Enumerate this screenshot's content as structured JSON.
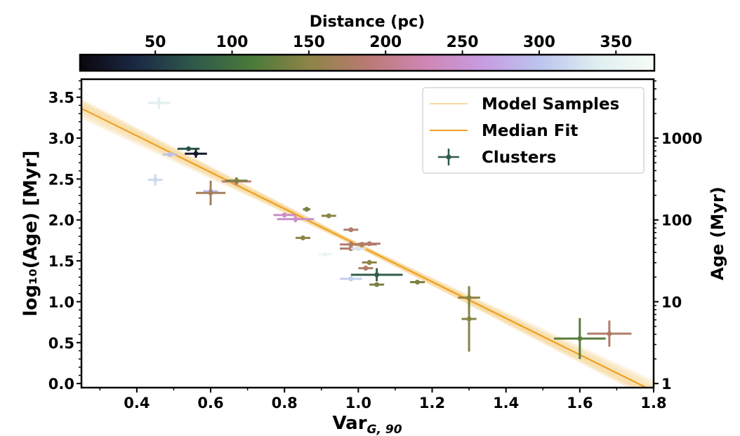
{
  "chart_data": {
    "type": "scatter",
    "colorbar": {
      "title": "Distance (pc)",
      "range": [
        1,
        375
      ],
      "ticks": [
        50,
        100,
        150,
        200,
        250,
        300,
        350
      ],
      "stops": [
        "#0b0610",
        "#1b2a45",
        "#2f5a4a",
        "#4a7a3a",
        "#8f8447",
        "#b97a72",
        "#cf86b4",
        "#c79be0",
        "#bcc4ee",
        "#dfeef0",
        "#f7fcf6"
      ]
    },
    "xlabel": "Var",
    "xlabel_sub": "G, 90",
    "ylabel": "log₁₀(Age) [Myr]",
    "y2label": "Age (Myr)",
    "xlim": [
      0.25,
      1.8
    ],
    "ylim": [
      -0.05,
      3.72
    ],
    "xticks": [
      "0.4",
      "0.6",
      "0.8",
      "1.0",
      "1.2",
      "1.4",
      "1.6",
      "1.8"
    ],
    "yticks": [
      "0.0",
      "0.5",
      "1.0",
      "1.5",
      "2.0",
      "2.5",
      "3.0",
      "3.5"
    ],
    "y2ticks": [
      "1",
      "10",
      "100",
      "1000"
    ],
    "legend": {
      "position": "top-right",
      "entries": [
        {
          "label": "Model Samples",
          "color": "#f5d9a0"
        },
        {
          "label": "Median Fit",
          "color": "#f0a020"
        },
        {
          "label": "Clusters",
          "color": "#2f5a4a"
        }
      ]
    },
    "median_fit": {
      "slope": -2.23,
      "intercept": 3.92
    },
    "model_sample_slopes": [
      -2.35,
      -2.3,
      -2.26,
      -2.2,
      -2.15,
      -2.1,
      -2.28,
      -2.18,
      -2.24,
      -2.32
    ],
    "clusters": [
      {
        "x": 0.46,
        "y": 3.43,
        "xerr": 0.03,
        "yerr": 0.07,
        "dist": 340
      },
      {
        "x": 0.45,
        "y": 2.49,
        "xerr": 0.02,
        "yerr": 0.07,
        "dist": 320
      },
      {
        "x": 0.54,
        "y": 2.87,
        "xerr": 0.03,
        "yerr": 0.02,
        "dist": 70
      },
      {
        "x": 0.56,
        "y": 2.81,
        "xerr": 0.03,
        "yerr": 0.05,
        "dist": 20
      },
      {
        "x": 0.49,
        "y": 2.8,
        "xerr": 0.02,
        "yerr": 0.03,
        "dist": 300
      },
      {
        "x": 0.6,
        "y": 2.35,
        "xerr": 0.02,
        "yerr": 0.05,
        "dist": 290
      },
      {
        "x": 0.6,
        "y": 2.33,
        "xerr": 0.04,
        "yerr": 0.15,
        "dist": 170
      },
      {
        "x": 0.67,
        "y": 2.47,
        "xerr": 0.04,
        "yerr": 0.05,
        "dist": 200
      },
      {
        "x": 0.67,
        "y": 2.48,
        "xerr": 0.03,
        "yerr": 0.04,
        "dist": 140
      },
      {
        "x": 0.8,
        "y": 2.06,
        "xerr": 0.03,
        "yerr": 0.03,
        "dist": 240
      },
      {
        "x": 0.83,
        "y": 2.01,
        "xerr": 0.05,
        "yerr": 0.04,
        "dist": 245
      },
      {
        "x": 0.86,
        "y": 2.13,
        "xerr": 0.01,
        "yerr": 0.02,
        "dist": 140
      },
      {
        "x": 0.85,
        "y": 1.78,
        "xerr": 0.02,
        "yerr": 0.02,
        "dist": 150
      },
      {
        "x": 0.92,
        "y": 2.05,
        "xerr": 0.02,
        "yerr": 0.02,
        "dist": 150
      },
      {
        "x": 0.98,
        "y": 1.88,
        "xerr": 0.02,
        "yerr": 0.02,
        "dist": 180
      },
      {
        "x": 0.98,
        "y": 1.7,
        "xerr": 0.03,
        "yerr": 0.04,
        "dist": 185
      },
      {
        "x": 0.98,
        "y": 1.65,
        "xerr": 0.03,
        "yerr": 0.03,
        "dist": 180
      },
      {
        "x": 1.0,
        "y": 1.65,
        "xerr": 0.02,
        "yerr": 0.03,
        "dist": 330
      },
      {
        "x": 1.01,
        "y": 1.7,
        "xerr": 0.04,
        "yerr": 0.03,
        "dist": 175
      },
      {
        "x": 1.03,
        "y": 1.71,
        "xerr": 0.03,
        "yerr": 0.02,
        "dist": 185
      },
      {
        "x": 0.91,
        "y": 1.58,
        "xerr": 0.02,
        "yerr": 0.02,
        "dist": 355
      },
      {
        "x": 1.03,
        "y": 1.48,
        "xerr": 0.02,
        "yerr": 0.03,
        "dist": 150
      },
      {
        "x": 1.02,
        "y": 1.41,
        "xerr": 0.02,
        "yerr": 0.03,
        "dist": 180
      },
      {
        "x": 0.98,
        "y": 1.28,
        "xerr": 0.03,
        "yerr": 0.03,
        "dist": 310
      },
      {
        "x": 1.05,
        "y": 1.33,
        "xerr": 0.07,
        "yerr": 0.08,
        "dist": 80
      },
      {
        "x": 1.05,
        "y": 1.21,
        "xerr": 0.02,
        "yerr": 0.02,
        "dist": 140
      },
      {
        "x": 1.16,
        "y": 1.24,
        "xerr": 0.02,
        "yerr": 0.02,
        "dist": 140
      },
      {
        "x": 1.3,
        "y": 1.05,
        "xerr": 0.03,
        "yerr": 0.12,
        "dist": 150
      },
      {
        "x": 1.3,
        "y": 0.79,
        "xerr": 0.02,
        "yerr": 0.4,
        "dist": 145
      },
      {
        "x": 1.6,
        "y": 0.55,
        "xerr": 0.07,
        "yerr": 0.25,
        "dist": 120
      },
      {
        "x": 1.68,
        "y": 0.61,
        "xerr": 0.06,
        "yerr": 0.16,
        "dist": 180
      }
    ]
  }
}
